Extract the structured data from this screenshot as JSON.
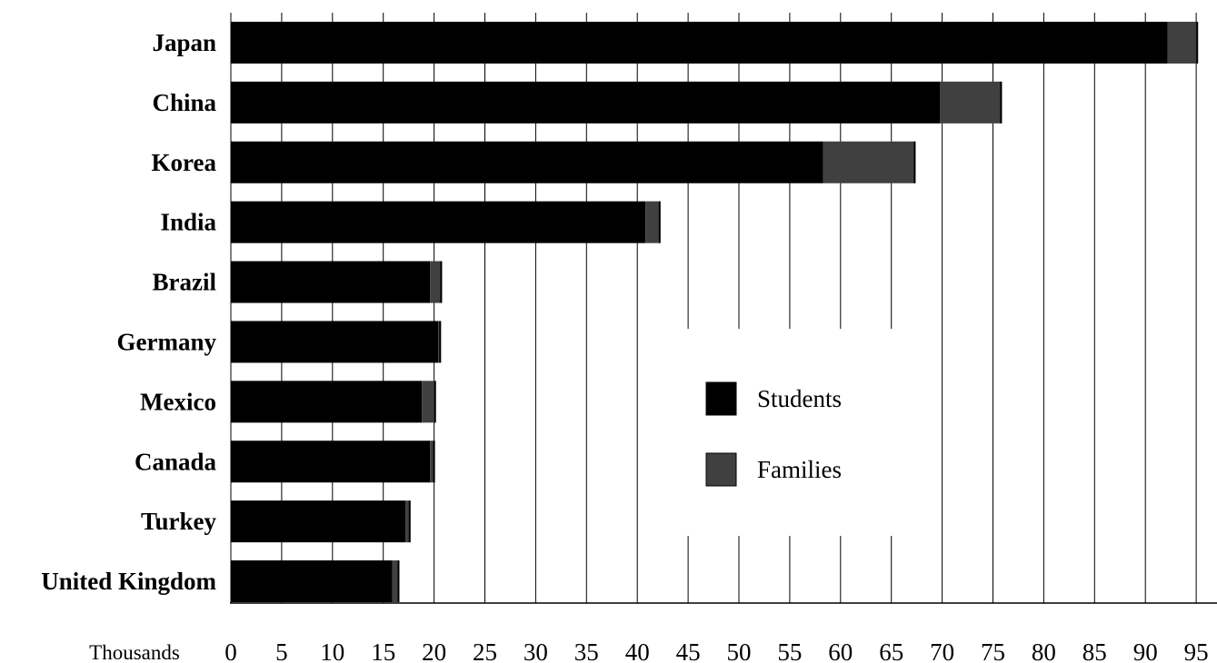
{
  "chart_data": {
    "type": "bar",
    "orientation": "horizontal",
    "stacked": true,
    "categories": [
      "Japan",
      "China",
      "Korea",
      "India",
      "Brazil",
      "Germany",
      "Mexico",
      "Canada",
      "Turkey",
      "United Kingdom"
    ],
    "series": [
      {
        "name": "Students",
        "color": "#000000",
        "values": [
          92.2,
          69.8,
          58.3,
          40.8,
          19.6,
          20.4,
          18.8,
          19.6,
          17.2,
          15.9
        ]
      },
      {
        "name": "Families",
        "color": "#404040",
        "values": [
          2.9,
          6.0,
          9.0,
          1.4,
          1.1,
          0.2,
          1.3,
          0.4,
          0.4,
          0.6
        ]
      }
    ],
    "x_unit_label": "Thousands",
    "xticks": [
      0,
      5,
      10,
      15,
      20,
      25,
      30,
      35,
      40,
      45,
      50,
      55,
      60,
      65,
      70,
      75,
      80,
      85,
      90,
      95
    ],
    "xlim": [
      0,
      97.5
    ],
    "grid": "vertical",
    "legend": {
      "position": "center-right",
      "entries": [
        "Students",
        "Families"
      ]
    }
  }
}
